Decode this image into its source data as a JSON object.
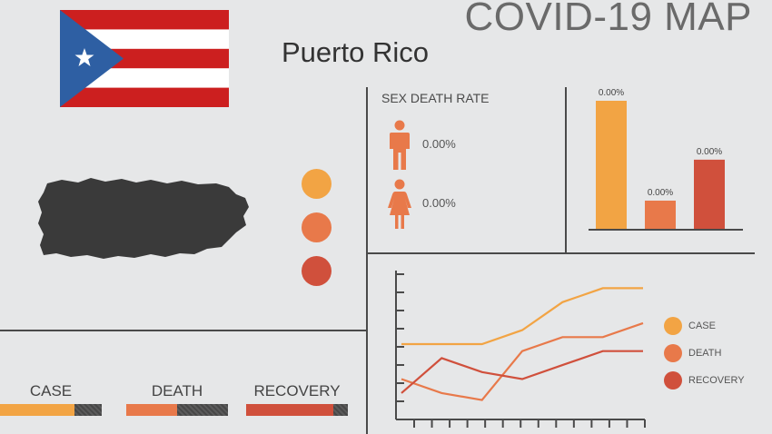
{
  "header": {
    "title": "COVID-19 MAP",
    "country": "Puerto Rico"
  },
  "flag": {
    "stripe_red": "#cc1f1f",
    "triangle_blue": "#2e5fa3",
    "star_color": "#ffffff"
  },
  "map": {
    "fill": "#3a3a3a"
  },
  "indicator_dots": [
    {
      "name": "case",
      "color": "#f2a444"
    },
    {
      "name": "death",
      "color": "#e8794a"
    },
    {
      "name": "recovery",
      "color": "#d0503c"
    }
  ],
  "sex_death_rate": {
    "title": "SEX DEATH RATE",
    "male": {
      "icon": "male-person-icon",
      "value": "0.00%"
    },
    "female": {
      "icon": "female-person-icon",
      "value": "0.00%"
    }
  },
  "bottom_bars": [
    {
      "label": "CASE",
      "color": "#f2a444",
      "fill_fraction": 0.73
    },
    {
      "label": "DEATH",
      "color": "#e8794a",
      "fill_fraction": 0.5
    },
    {
      "label": "RECOVERY",
      "color": "#d0503c",
      "fill_fraction": 0.86
    }
  ],
  "legend": [
    {
      "label": "CASE",
      "color": "#f2a444"
    },
    {
      "label": "DEATH",
      "color": "#e8794a"
    },
    {
      "label": "RECOVERY",
      "color": "#d0503c"
    }
  ],
  "chart_data": [
    {
      "type": "bar",
      "categories": [
        "",
        "",
        ""
      ],
      "values": [
        100,
        22,
        54
      ],
      "data_labels": [
        "0.00%",
        "0.00%",
        "0.00%"
      ],
      "colors": [
        "#f2a444",
        "#e8794a",
        "#d0503c"
      ],
      "ylim": [
        0,
        100
      ]
    },
    {
      "type": "line",
      "x": [
        0,
        1,
        2,
        3,
        4,
        5,
        6
      ],
      "series": [
        {
          "color": "#f2a444",
          "values": [
            50,
            50,
            50,
            60,
            80,
            90,
            90
          ]
        },
        {
          "color": "#e8794a",
          "values": [
            25,
            15,
            10,
            45,
            55,
            55,
            65
          ]
        },
        {
          "color": "#d0503c",
          "values": [
            15,
            40,
            30,
            25,
            35,
            45,
            45
          ]
        }
      ],
      "ylim": [
        0,
        100
      ],
      "y_ticks": 8,
      "x_ticks": 14,
      "grid": false
    }
  ]
}
